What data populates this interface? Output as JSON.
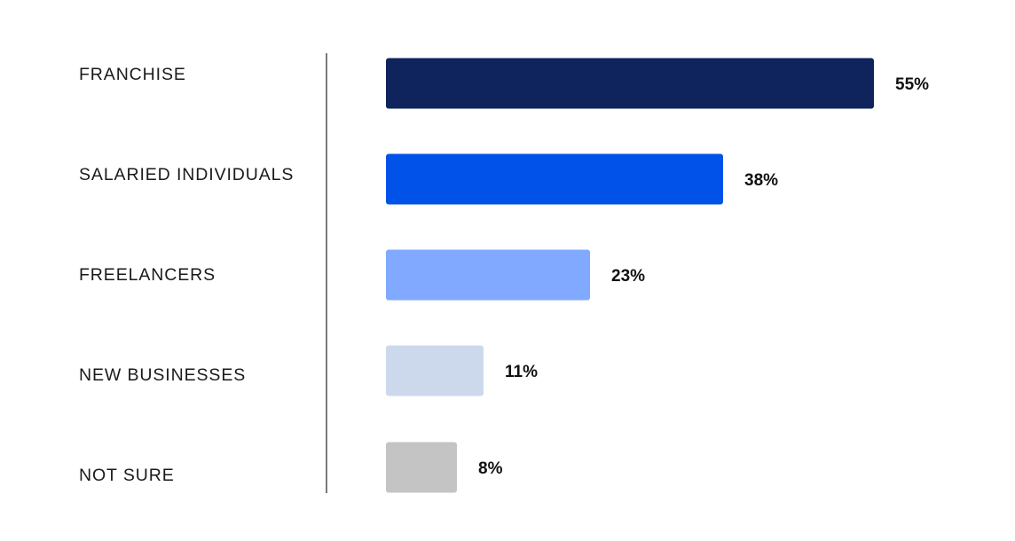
{
  "chart_data": {
    "type": "bar",
    "orientation": "horizontal",
    "categories": [
      "FRANCHISE",
      "SALARIED INDIVIDUALS",
      "FREELANCERS",
      "NEW BUSINESSES",
      "NOT SURE"
    ],
    "values": [
      55,
      38,
      23,
      11,
      8
    ],
    "value_labels": [
      "55%",
      "38%",
      "23%",
      "11%",
      "8%"
    ],
    "unit": "%",
    "colors": [
      "#0f235c",
      "#0052e8",
      "#80a9ff",
      "#ccd9ed",
      "#c4c4c4"
    ],
    "title": "",
    "xlabel": "",
    "ylabel": "",
    "grid": false,
    "legend": "none"
  }
}
